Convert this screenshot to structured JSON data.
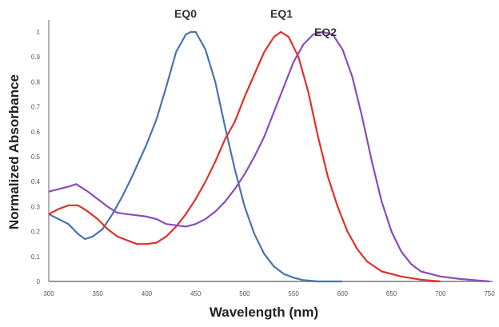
{
  "chart_data": {
    "type": "line",
    "title": "",
    "xlabel": "Wavelength (nm)",
    "ylabel": "Normalized Absorbance",
    "xlim": [
      300,
      750
    ],
    "ylim": [
      0,
      1
    ],
    "xticks": [
      "300",
      "350",
      "400",
      "450",
      "500",
      "550",
      "600",
      "650",
      "700",
      "750"
    ],
    "yticks": [
      "0",
      "0.1",
      "0.2",
      "0.3",
      "0.4",
      "0.5",
      "0.6",
      "0.7",
      "0.8",
      "0.9",
      "1"
    ],
    "grid": false,
    "series": [
      {
        "name": "EQ0",
        "color": "#4a72b0",
        "x": [
          300,
          310,
          320,
          330,
          337,
          345,
          355,
          365,
          375,
          385,
          400,
          410,
          420,
          430,
          440,
          445,
          450,
          460,
          470,
          480,
          490,
          500,
          510,
          520,
          530,
          540,
          550,
          560,
          575,
          600
        ],
        "y": [
          0.27,
          0.25,
          0.23,
          0.19,
          0.17,
          0.18,
          0.21,
          0.27,
          0.34,
          0.42,
          0.55,
          0.65,
          0.78,
          0.92,
          0.99,
          1.0,
          1.0,
          0.93,
          0.8,
          0.62,
          0.45,
          0.3,
          0.19,
          0.11,
          0.06,
          0.03,
          0.015,
          0.005,
          0,
          0
        ]
      },
      {
        "name": "EQ1",
        "color": "#e0302a",
        "x": [
          300,
          310,
          320,
          330,
          340,
          350,
          360,
          370,
          380,
          390,
          400,
          410,
          420,
          430,
          440,
          450,
          460,
          470,
          480,
          490,
          500,
          510,
          520,
          530,
          537,
          545,
          555,
          565,
          575,
          585,
          595,
          605,
          615,
          625,
          640,
          660,
          680,
          700
        ],
        "y": [
          0.27,
          0.29,
          0.305,
          0.305,
          0.28,
          0.25,
          0.21,
          0.18,
          0.165,
          0.15,
          0.15,
          0.155,
          0.18,
          0.22,
          0.27,
          0.33,
          0.4,
          0.48,
          0.57,
          0.64,
          0.74,
          0.83,
          0.92,
          0.98,
          1.0,
          0.98,
          0.9,
          0.76,
          0.58,
          0.42,
          0.3,
          0.2,
          0.13,
          0.08,
          0.04,
          0.02,
          0.007,
          0
        ]
      },
      {
        "name": "EQ2",
        "color": "#8a4cb8",
        "x": [
          300,
          310,
          320,
          328,
          340,
          350,
          360,
          370,
          380,
          390,
          400,
          410,
          420,
          430,
          440,
          450,
          460,
          470,
          480,
          490,
          500,
          510,
          520,
          530,
          540,
          550,
          560,
          570,
          580,
          590,
          600,
          610,
          620,
          630,
          640,
          650,
          660,
          670,
          680,
          700,
          720,
          750
        ],
        "y": [
          0.36,
          0.37,
          0.38,
          0.39,
          0.36,
          0.33,
          0.3,
          0.275,
          0.27,
          0.265,
          0.26,
          0.25,
          0.23,
          0.225,
          0.22,
          0.23,
          0.25,
          0.28,
          0.32,
          0.37,
          0.43,
          0.5,
          0.58,
          0.68,
          0.78,
          0.88,
          0.95,
          0.99,
          1.0,
          0.99,
          0.93,
          0.82,
          0.66,
          0.48,
          0.32,
          0.2,
          0.12,
          0.07,
          0.04,
          0.02,
          0.01,
          0
        ]
      }
    ]
  }
}
